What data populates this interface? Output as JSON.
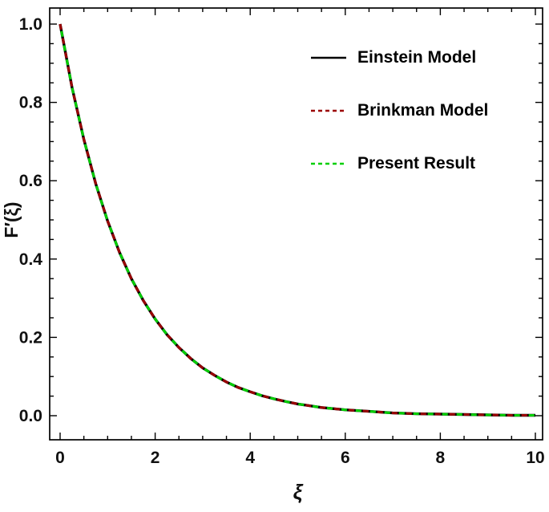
{
  "chart_data": {
    "type": "line",
    "title": "",
    "xlabel": "ξ",
    "ylabel": "F′(ξ)",
    "xlim": [
      0,
      10
    ],
    "ylim": [
      0,
      1.0
    ],
    "grid": false,
    "legend_position": "upper-right",
    "x_ticks": [
      0,
      2,
      4,
      6,
      8,
      10
    ],
    "x_tick_labels": [
      "0",
      "2",
      "4",
      "6",
      "8",
      "10"
    ],
    "y_ticks": [
      0.0,
      0.2,
      0.4,
      0.6,
      0.8,
      1.0
    ],
    "y_tick_labels": [
      "0.0",
      "0.2",
      "0.4",
      "0.6",
      "0.8",
      "1.0"
    ],
    "x": [
      0,
      0.25,
      0.5,
      0.75,
      1,
      1.25,
      1.5,
      1.75,
      2,
      2.25,
      2.5,
      2.75,
      3,
      3.25,
      3.5,
      3.75,
      4,
      4.25,
      4.5,
      4.75,
      5,
      5.5,
      6,
      6.5,
      7,
      7.5,
      8,
      8.5,
      9,
      9.5,
      10
    ],
    "series": [
      {
        "name": "Einstein Model",
        "color": "#000000",
        "style": "solid",
        "values": [
          1,
          0.839,
          0.705,
          0.592,
          0.497,
          0.417,
          0.35,
          0.294,
          0.247,
          0.207,
          0.174,
          0.146,
          0.122,
          0.103,
          0.086,
          0.072,
          0.061,
          0.051,
          0.043,
          0.036,
          0.03,
          0.021,
          0.015,
          0.011,
          0.007,
          0.005,
          0.004,
          0.003,
          0.002,
          0.001,
          0.001
        ]
      },
      {
        "name": "Brinkman Model",
        "color": "#9b0000",
        "style": "dashed",
        "values": [
          1,
          0.839,
          0.705,
          0.592,
          0.497,
          0.417,
          0.35,
          0.294,
          0.247,
          0.207,
          0.174,
          0.146,
          0.122,
          0.103,
          0.086,
          0.072,
          0.061,
          0.051,
          0.043,
          0.036,
          0.03,
          0.021,
          0.015,
          0.011,
          0.007,
          0.005,
          0.004,
          0.003,
          0.002,
          0.001,
          0.001
        ]
      },
      {
        "name": "Present Result",
        "color": "#00cf00",
        "style": "dashed",
        "values": [
          1,
          0.839,
          0.705,
          0.592,
          0.497,
          0.417,
          0.35,
          0.294,
          0.247,
          0.207,
          0.174,
          0.146,
          0.122,
          0.103,
          0.086,
          0.072,
          0.061,
          0.051,
          0.043,
          0.036,
          0.03,
          0.021,
          0.015,
          0.011,
          0.007,
          0.005,
          0.004,
          0.003,
          0.002,
          0.001,
          0.001
        ]
      }
    ]
  }
}
